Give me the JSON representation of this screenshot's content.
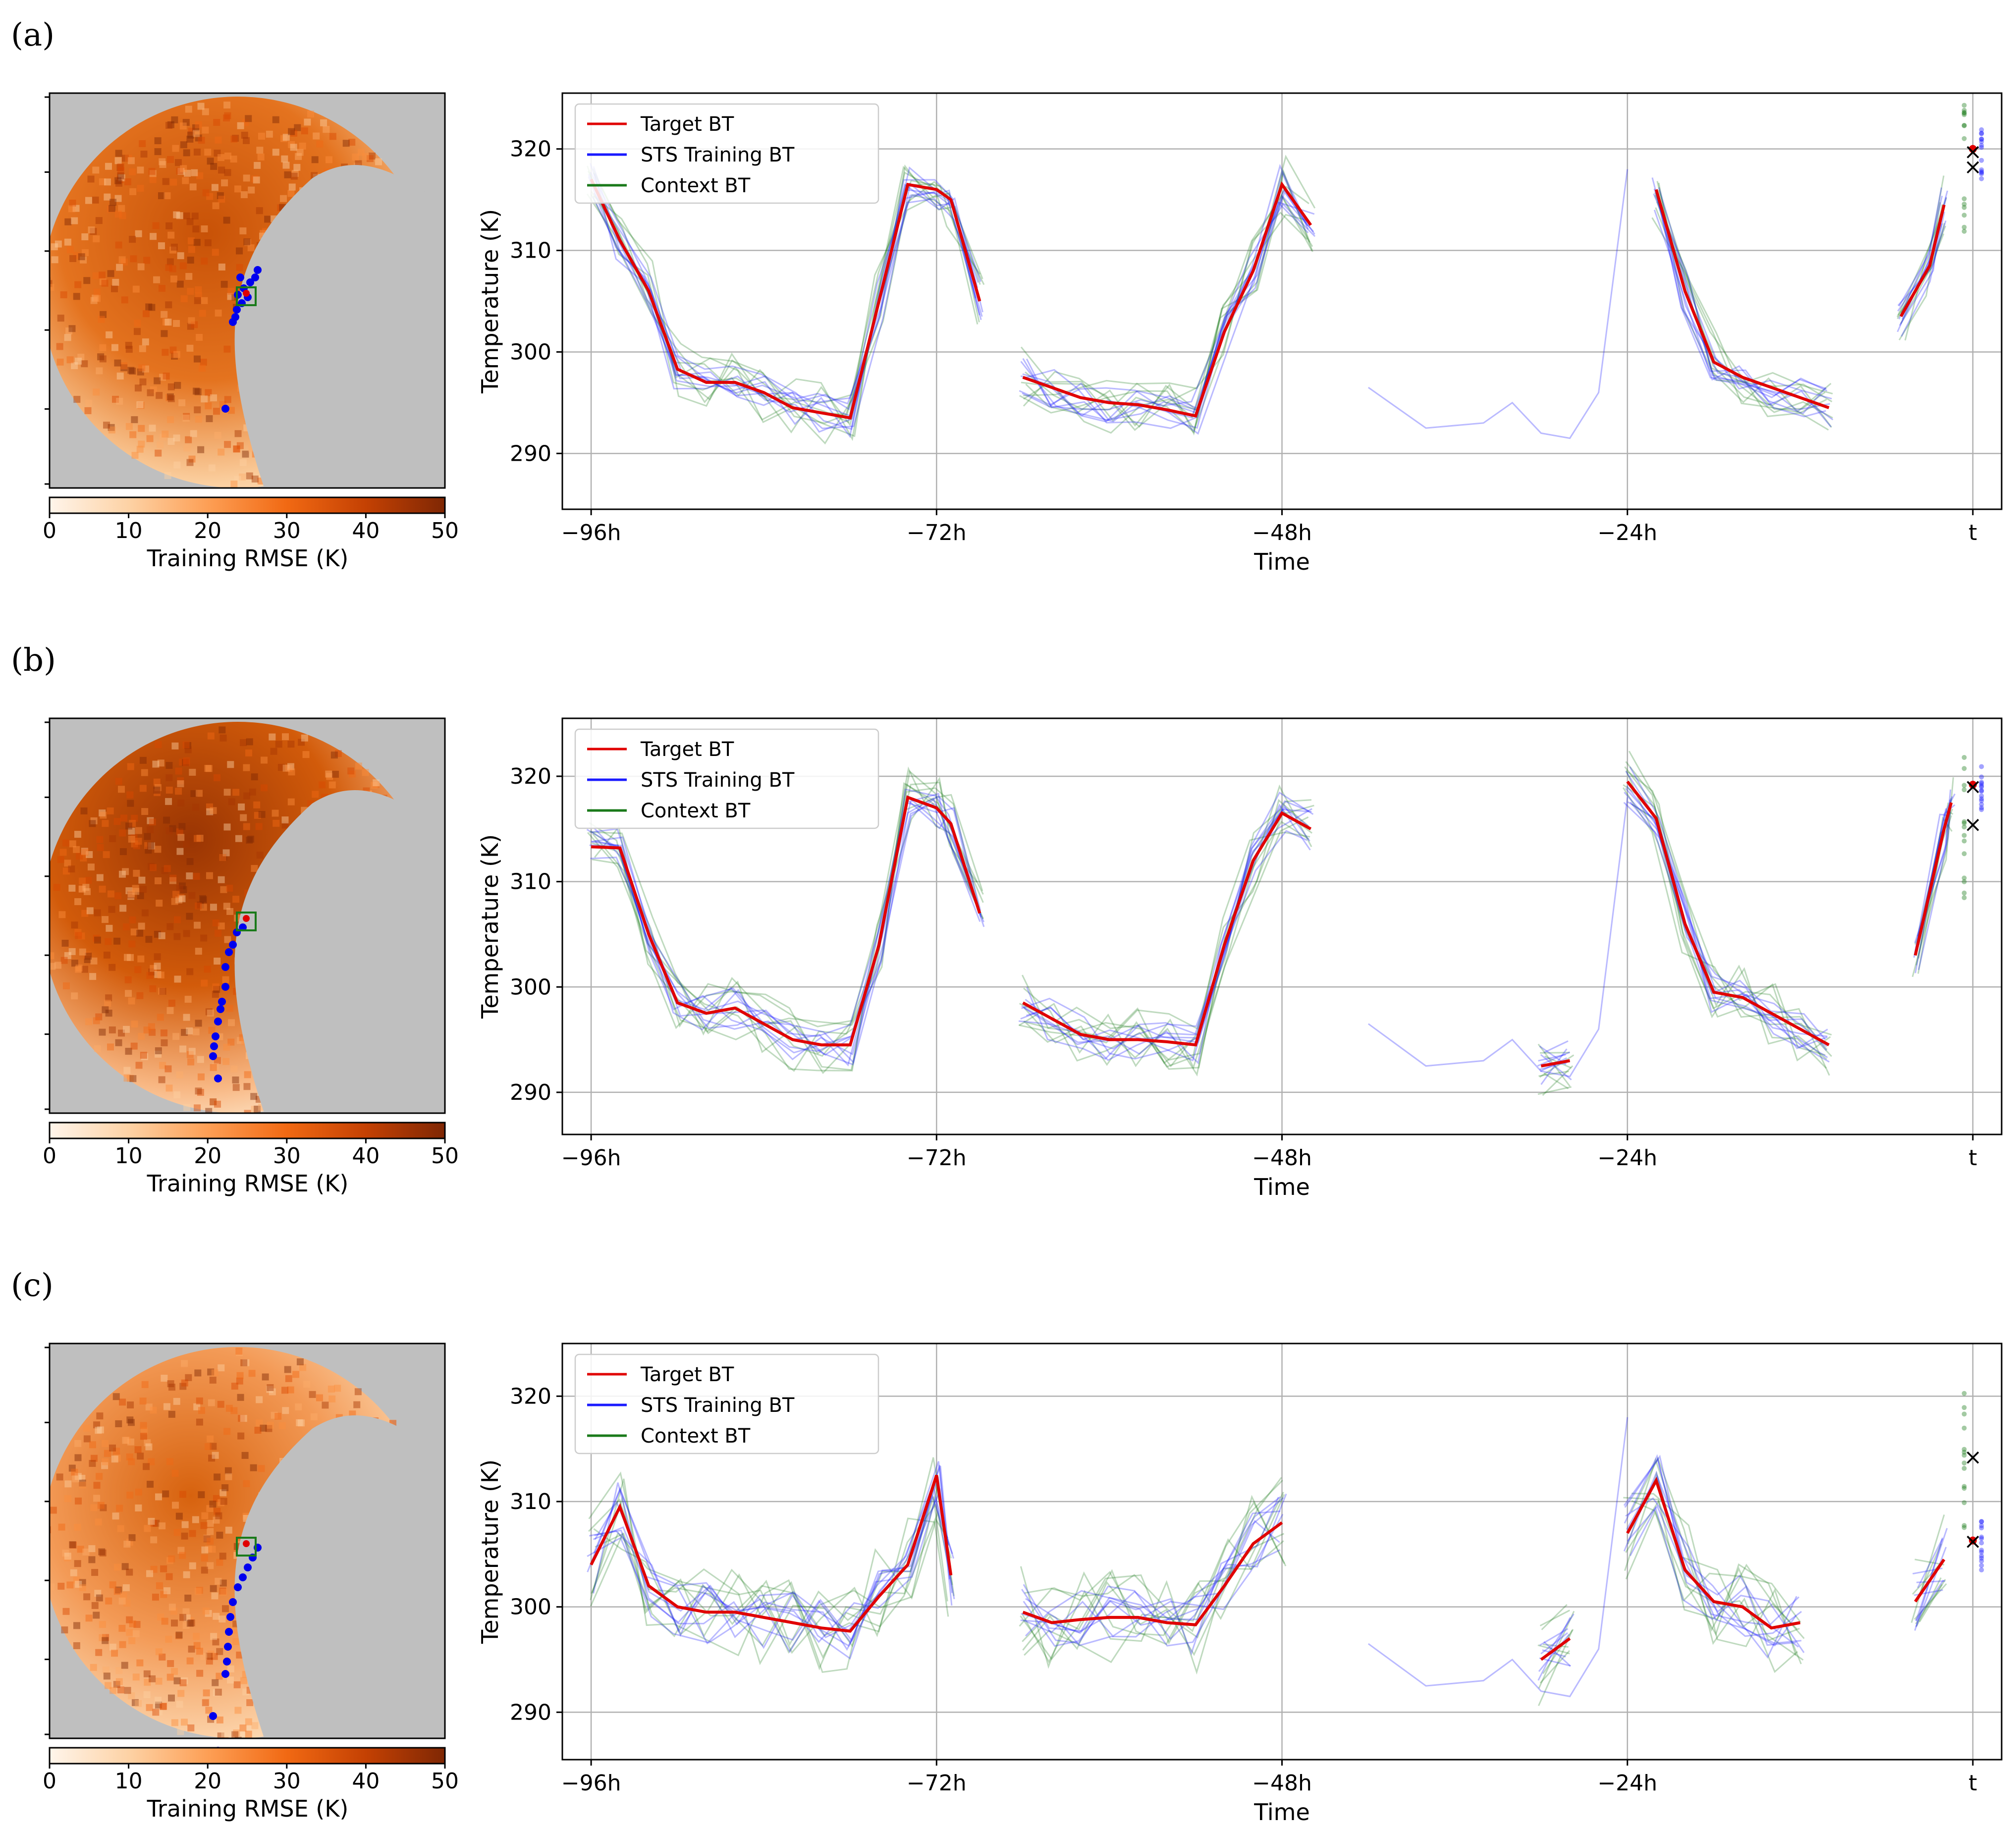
{
  "figure": {
    "panels": [
      "(a)",
      "(b)",
      "(c)"
    ],
    "legend": [
      "Target BT",
      "STS Training BT",
      "Context BT"
    ],
    "colors": {
      "target": "#e00000",
      "sts": "#1a1aff",
      "context": "#1a7a1a",
      "mask": "#bfbfbf",
      "frame": "#000000"
    }
  },
  "chart_data": [
    {
      "panel": "(a)",
      "type": "line",
      "xlabel": "Time",
      "ylabel": "Temperature (K)",
      "xticks": [
        "−96h",
        "−72h",
        "−48h",
        "−24h",
        "t"
      ],
      "yticks": [
        "290",
        "300",
        "310",
        "320"
      ],
      "ylim": [
        284.5,
        325.5
      ],
      "xlim": [
        -98,
        2
      ],
      "grid": true,
      "legend_position": "top-left",
      "series": [
        {
          "name": "Target BT",
          "segments": [
            [
              [
                -96,
                317
              ],
              [
                -94,
                311
              ],
              [
                -92,
                306
              ],
              [
                -90,
                298.3
              ],
              [
                -88,
                297
              ],
              [
                -86,
                297
              ],
              [
                -84,
                296
              ],
              [
                -82,
                294.5
              ],
              [
                -80,
                294
              ],
              [
                -78,
                293.5
              ],
              [
                -76,
                305
              ],
              [
                -74,
                316.5
              ],
              [
                -72,
                316
              ],
              [
                -71,
                315
              ],
              [
                -69,
                305
              ]
            ],
            [
              [
                -66,
                297.5
              ],
              [
                -64,
                296.5
              ],
              [
                -62,
                295.5
              ],
              [
                -60,
                295
              ],
              [
                -58,
                294.8
              ],
              [
                -56,
                294.3
              ],
              [
                -54,
                293.7
              ],
              [
                -52,
                302
              ],
              [
                -50,
                308
              ],
              [
                -48,
                316.5
              ],
              [
                -46,
                312.5
              ]
            ],
            [
              [
                -22,
                316
              ],
              [
                -20,
                306
              ],
              [
                -18,
                299
              ],
              [
                -16,
                297.5
              ],
              [
                -14,
                296.5
              ],
              [
                -12,
                295.5
              ],
              [
                -10,
                294.5
              ]
            ],
            [
              [
                -5,
                303.5
              ],
              [
                -3,
                308.5
              ],
              [
                -2,
                314.5
              ]
            ]
          ]
        },
        {
          "name": "STS Training BT",
          "segments": []
        },
        {
          "name": "Context BT",
          "segments": []
        }
      ],
      "end_markers": {
        "target": 320,
        "sts": 319.5,
        "context": 318
      }
    },
    {
      "panel": "(b)",
      "type": "line",
      "xlabel": "Time",
      "ylabel": "Temperature (K)",
      "xticks": [
        "−96h",
        "−72h",
        "−48h",
        "−24h",
        "t"
      ],
      "yticks": [
        "290",
        "300",
        "310",
        "320"
      ],
      "ylim": [
        286,
        325.5
      ],
      "xlim": [
        -98,
        2
      ],
      "grid": true,
      "legend_position": "top-left",
      "series": [
        {
          "name": "Target BT",
          "segments": [
            [
              [
                -96,
                313.3
              ],
              [
                -94,
                313.2
              ],
              [
                -92,
                305
              ],
              [
                -90,
                298.5
              ],
              [
                -88,
                297.5
              ],
              [
                -86,
                298
              ],
              [
                -84,
                296.5
              ],
              [
                -82,
                295
              ],
              [
                -80,
                294.5
              ],
              [
                -78,
                294.5
              ],
              [
                -76,
                304
              ],
              [
                -74,
                318
              ],
              [
                -72,
                317
              ],
              [
                -71,
                315.5
              ],
              [
                -69,
                307
              ]
            ],
            [
              [
                -66,
                298.5
              ],
              [
                -64,
                297
              ],
              [
                -62,
                295.5
              ],
              [
                -60,
                295
              ],
              [
                -58,
                295
              ],
              [
                -56,
                294.8
              ],
              [
                -54,
                294.5
              ],
              [
                -52,
                304
              ],
              [
                -50,
                312
              ],
              [
                -48,
                316.5
              ],
              [
                -46,
                315
              ]
            ],
            [
              [
                -30,
                292.5
              ],
              [
                -28,
                293
              ]
            ],
            [
              [
                -24,
                319.5
              ],
              [
                -22,
                316
              ],
              [
                -20,
                306
              ],
              [
                -18,
                299.5
              ],
              [
                -16,
                299
              ],
              [
                -14,
                297.5
              ],
              [
                -12,
                296
              ],
              [
                -10,
                294.5
              ]
            ],
            [
              [
                -4,
                303
              ],
              [
                -2,
                315
              ],
              [
                -1.5,
                317.5
              ]
            ]
          ]
        },
        {
          "name": "STS Training BT",
          "segments": []
        },
        {
          "name": "Context BT",
          "segments": []
        }
      ],
      "end_markers": {
        "target": 319.2,
        "sts": 318.8,
        "context": 315.2
      }
    },
    {
      "panel": "(c)",
      "type": "line",
      "xlabel": "Time",
      "ylabel": "Temperature (K)",
      "xticks": [
        "−96h",
        "−72h",
        "−48h",
        "−24h",
        "t"
      ],
      "yticks": [
        "290",
        "300",
        "310",
        "320"
      ],
      "ylim": [
        285.5,
        325
      ],
      "xlim": [
        -98,
        2
      ],
      "grid": true,
      "legend_position": "top-left",
      "series": [
        {
          "name": "Target BT",
          "segments": [
            [
              [
                -96,
                304
              ],
              [
                -94,
                309.5
              ],
              [
                -92,
                302
              ],
              [
                -90,
                300
              ],
              [
                -88,
                299.5
              ],
              [
                -86,
                299.5
              ],
              [
                -84,
                299
              ],
              [
                -82,
                298.5
              ],
              [
                -80,
                298
              ],
              [
                -78,
                297.7
              ],
              [
                -76,
                301
              ],
              [
                -74,
                304
              ],
              [
                -72,
                312.5
              ],
              [
                -71,
                303
              ]
            ],
            [
              [
                -66,
                299.5
              ],
              [
                -64,
                298.5
              ],
              [
                -62,
                298.8
              ],
              [
                -60,
                299
              ],
              [
                -58,
                299
              ],
              [
                -56,
                298.5
              ],
              [
                -54,
                298.3
              ],
              [
                -52,
                302
              ],
              [
                -50,
                306
              ],
              [
                -48,
                308
              ]
            ],
            [
              [
                -30,
                295
              ],
              [
                -28,
                297
              ]
            ],
            [
              [
                -24,
                307
              ],
              [
                -22,
                312
              ],
              [
                -20,
                303.5
              ],
              [
                -18,
                300.5
              ],
              [
                -16,
                300
              ],
              [
                -14,
                298
              ],
              [
                -12,
                298.5
              ]
            ],
            [
              [
                -4,
                300.5
              ],
              [
                -2,
                304.5
              ]
            ]
          ]
        },
        {
          "name": "STS Training BT",
          "segments": []
        },
        {
          "name": "Context BT",
          "segments": []
        }
      ],
      "end_markers": {
        "target": 306.3,
        "sts": 306,
        "context": 314
      }
    }
  ],
  "colorbar": {
    "label": "Training RMSE (K)",
    "ticks": [
      "0",
      "10",
      "20",
      "30",
      "40",
      "50"
    ],
    "range": [
      0,
      50
    ]
  }
}
